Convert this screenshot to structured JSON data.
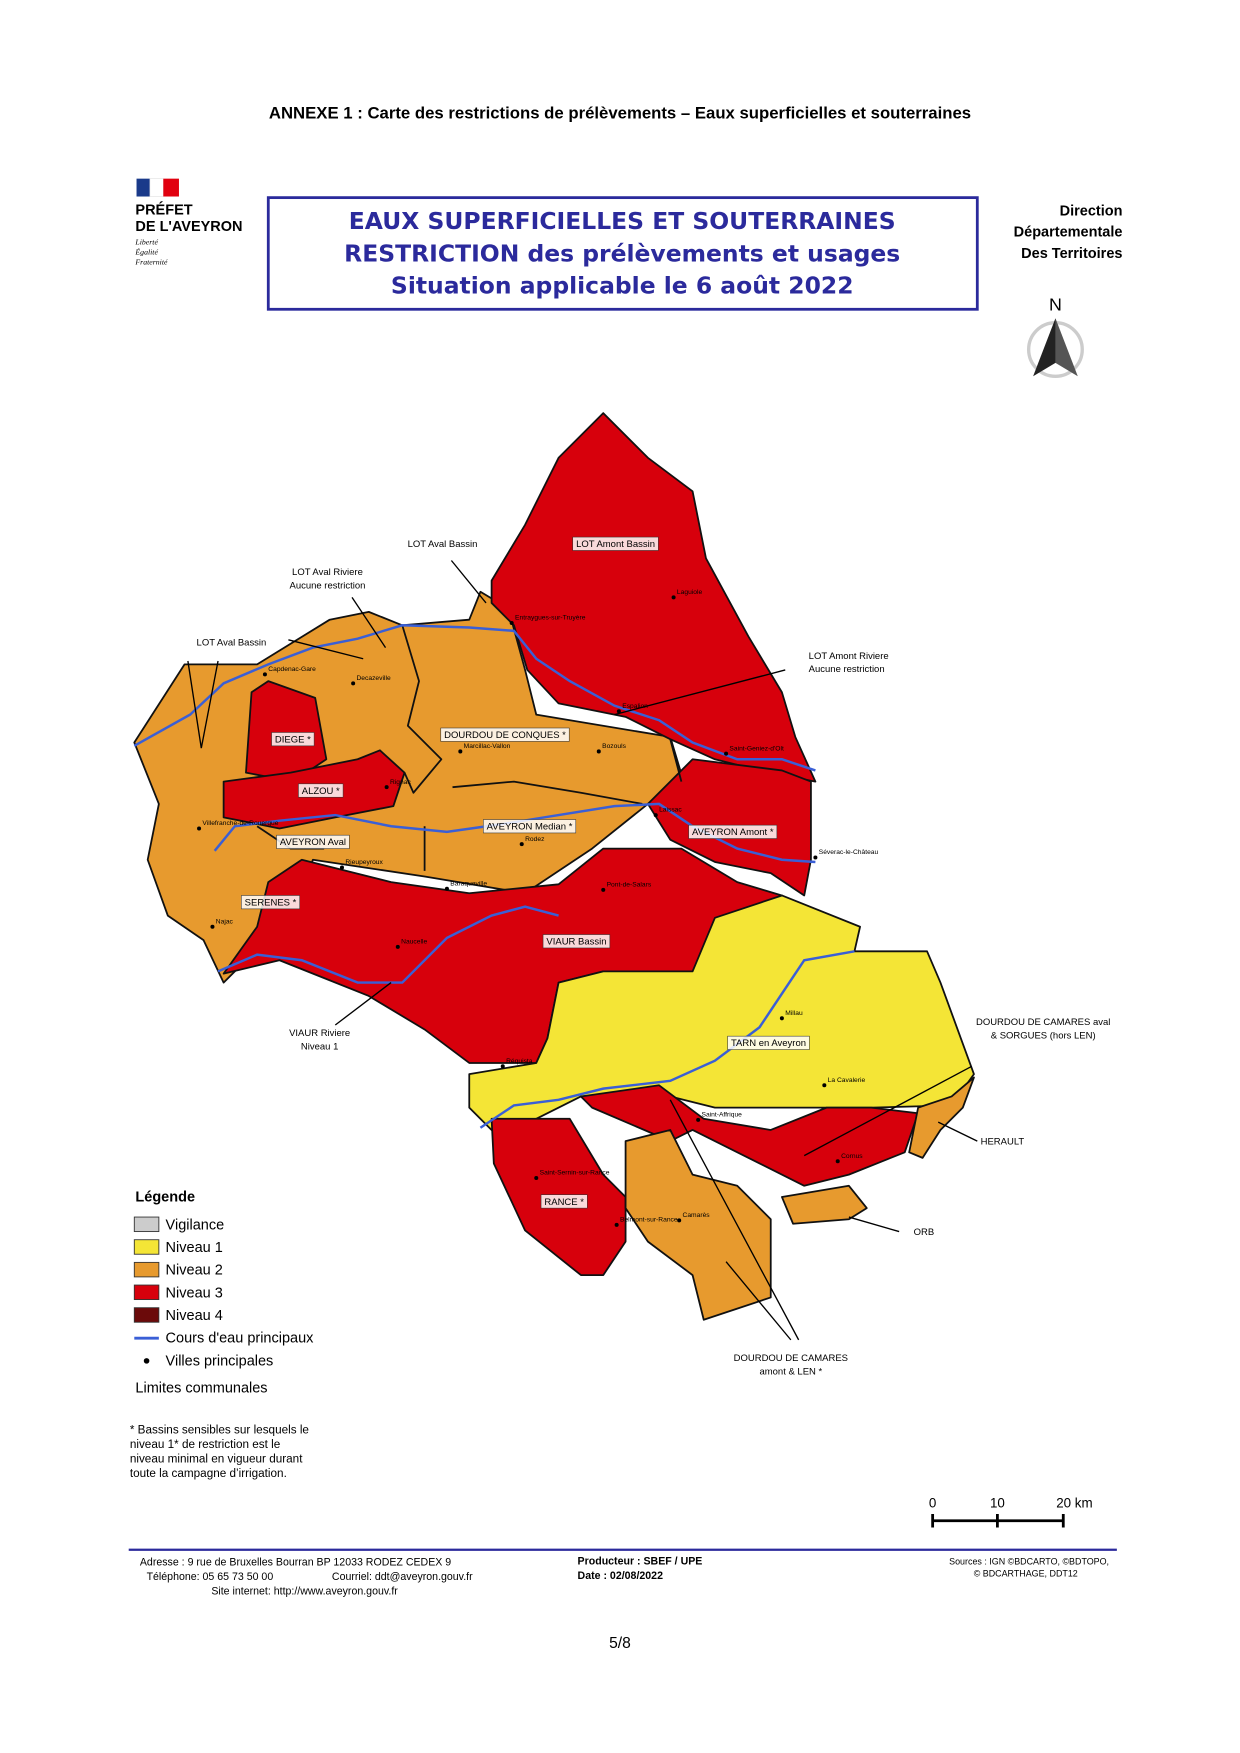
{
  "header": {
    "title": "ANNEXE 1 : Carte des restrictions de prélèvements – Eaux superficielles et souterraines"
  },
  "logo": {
    "lines": [
      "PRÉFET",
      "DE L'AVEYRON"
    ],
    "motto": [
      "Liberté",
      "Égalité",
      "Fraternité"
    ]
  },
  "title_box": {
    "lines": [
      "EAUX SUPERFICIELLES ET SOUTERRAINES",
      "RESTRICTION des prélèvements et usages",
      "Situation applicable le  6 août 2022"
    ]
  },
  "direction": {
    "lines": [
      "Direction",
      "Départementale",
      "Des Territoires"
    ]
  },
  "north": "N",
  "map": {
    "regions": [
      "LOT Amont Bassin",
      "DOURDOU DE CONQUES *",
      "DIEGE *",
      "ALZOU *",
      "AVEYRON Aval",
      "AVEYRON Median *",
      "AVEYRON Amont *",
      "SERENES *",
      "VIAUR Bassin",
      "TARN en Aveyron",
      "RANCE *"
    ],
    "towns": [
      "Laguiole",
      "Entraygues-sur-Truyère",
      "Capdenac-Gare",
      "Decazeville",
      "Espalion",
      "Saint-Geniez-d'Olt",
      "Marcillac-Vallon",
      "Bozouls",
      "Rignac",
      "Villefranche-de-Rouergue",
      "Rodez",
      "Laissac",
      "Séverac-le-Château",
      "Rieupeyroux",
      "Baraqueville",
      "Pont-de-Salars",
      "Najac",
      "Naucelle",
      "Millau",
      "Réquista",
      "La Cavalerie",
      "Saint-Affrique",
      "Saint-Sernin-sur-Rance",
      "Cornus",
      "Belmont-sur-Rance",
      "Camarès"
    ],
    "callouts": {
      "lot_aval_bassin_top": [
        "LOT Aval Bassin"
      ],
      "lot_aval_riviere": [
        "LOT Aval Riviere",
        "Aucune restriction"
      ],
      "lot_aval_bassin_left": [
        "LOT Aval Bassin"
      ],
      "lot_amont_riviere": [
        "LOT Amont Riviere",
        "Aucune restriction"
      ],
      "viaur_riviere": [
        "VIAUR Riviere",
        "Niveau 1"
      ],
      "dourdou_aval": [
        "DOURDOU DE CAMARES aval",
        "& SORGUES (hors LEN)"
      ],
      "herault": [
        "HERAULT"
      ],
      "orb": [
        "ORB"
      ],
      "dourdou_amont": [
        "DOURDOU DE CAMARES",
        "amont & LEN *"
      ]
    }
  },
  "legend": {
    "title": "Légende",
    "items": [
      "Vigilance",
      "Niveau 1",
      "Niveau 2",
      "Niveau 3",
      "Niveau 4",
      "Cours d'eau principaux",
      "Villes principales",
      "Limites communales"
    ]
  },
  "footnote": [
    "* Bassins sensibles sur lesquels le",
    "niveau 1* de restriction est le",
    "niveau minimal en vigueur durant",
    "toute la campagne d’irrigation."
  ],
  "scale": {
    "labels": [
      "0",
      "10",
      "20 km"
    ]
  },
  "footer": {
    "address": [
      "Adresse : 9 rue de Bruxelles Bourran BP 12033 RODEZ CEDEX 9",
      "Téléphone: 05 65 73 50 00",
      "Courriel: ddt@aveyron.gouv.fr",
      "Site internet: http://www.aveyron.gouv.fr"
    ],
    "producer": [
      "Producteur : SBEF / UPE",
      "Date : 02/08/2022"
    ],
    "sources": [
      "Sources : IGN ©BDCARTO, ©BDTOPO,",
      "© BDCARTHAGE, DDT12"
    ]
  },
  "page_number": "5/8"
}
